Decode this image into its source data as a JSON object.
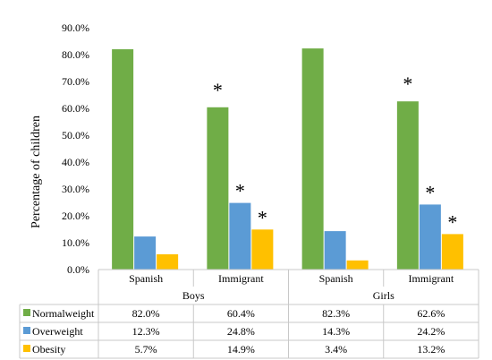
{
  "chart_data": {
    "type": "bar",
    "ylabel": "Percentage of children",
    "ylim": [
      0,
      90
    ],
    "yticks": [
      "0.0%",
      "10.0%",
      "20.0%",
      "30.0%",
      "40.0%",
      "50.0%",
      "60.0%",
      "70.0%",
      "80.0%",
      "90.0%"
    ],
    "grid": false,
    "groups": [
      {
        "label": "Boys",
        "categories": [
          "Spanish",
          "Immigrant"
        ]
      },
      {
        "label": "Girls",
        "categories": [
          "Spanish",
          "Immigrant"
        ]
      }
    ],
    "categories": [
      "Spanish",
      "Immigrant",
      "Spanish",
      "Immigrant"
    ],
    "series": [
      {
        "name": "Normalweight",
        "color": "#70ad47",
        "values": [
          82.0,
          60.4,
          82.3,
          62.6
        ],
        "labels": [
          "82.0%",
          "60.4%",
          "82.3%",
          "62.6%"
        ]
      },
      {
        "name": "Overweight",
        "color": "#5b9bd5",
        "values": [
          12.3,
          24.8,
          14.3,
          24.2
        ],
        "labels": [
          "12.3%",
          "24.8%",
          "14.3%",
          "24.2%"
        ]
      },
      {
        "name": "Obesity",
        "color": "#ffc000",
        "values": [
          5.7,
          14.9,
          3.4,
          13.2
        ],
        "labels": [
          "5.7%",
          "14.9%",
          "3.4%",
          "13.2%"
        ]
      }
    ],
    "significance_marker": "*",
    "significant": [
      {
        "series": 0,
        "category": 1
      },
      {
        "series": 1,
        "category": 1
      },
      {
        "series": 2,
        "category": 1
      },
      {
        "series": 0,
        "category": 3
      },
      {
        "series": 1,
        "category": 3
      },
      {
        "series": 2,
        "category": 3
      }
    ],
    "legend": "table-left"
  }
}
